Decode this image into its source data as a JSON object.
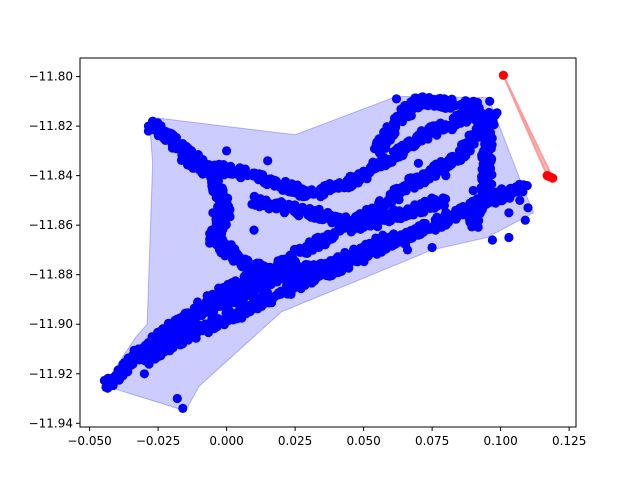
{
  "chart_data": {
    "type": "scatter",
    "title": "",
    "xlabel": "",
    "ylabel": "",
    "xlim": [
      -0.0535,
      0.1275
    ],
    "ylim": [
      -11.9415,
      -11.7925
    ],
    "xticks": [
      -0.05,
      -0.025,
      0.0,
      0.025,
      0.05,
      0.075,
      0.1,
      0.125
    ],
    "yticks": [
      -11.94,
      -11.92,
      -11.9,
      -11.88,
      -11.86,
      -11.84,
      -11.82,
      -11.8
    ],
    "xtick_labels": [
      "−0.050",
      "−0.025",
      "0.000",
      "0.025",
      "0.050",
      "0.075",
      "0.100",
      "0.125"
    ],
    "ytick_labels": [
      "−11.94",
      "−11.92",
      "−11.90",
      "−11.88",
      "−11.86",
      "−11.84",
      "−11.82",
      "−11.80"
    ],
    "grid": false,
    "colors": {
      "cluster_main": "#0000ff",
      "hull_fill": "#0000ff",
      "cluster_outlier": "#ff0000",
      "outlier_line": "#ff9999"
    },
    "series": [
      {
        "color": "#0000ff",
        "hull": [
          [
            -0.0455,
            -11.9245
          ],
          [
            -0.042,
            -11.92
          ],
          [
            -0.033,
            -11.905
          ],
          [
            -0.029,
            -11.9
          ],
          [
            -0.027,
            -11.835
          ],
          [
            -0.028,
            -11.82
          ],
          [
            -0.027,
            -11.8165
          ],
          [
            0.025,
            -11.8235
          ],
          [
            0.062,
            -11.808
          ],
          [
            0.0955,
            -11.8085
          ],
          [
            0.109,
            -11.847
          ],
          [
            0.112,
            -11.855
          ],
          [
            0.095,
            -11.865
          ],
          [
            0.075,
            -11.87
          ],
          [
            0.02,
            -11.895
          ],
          [
            -0.01,
            -11.925
          ],
          [
            -0.015,
            -11.935
          ]
        ],
        "spines": [
          {
            "points": [
              [
                -0.044,
                -11.925
              ],
              [
                -0.03,
                -11.91
              ],
              [
                -0.015,
                -11.898
              ],
              [
                0.0,
                -11.886
              ],
              [
                0.02,
                -11.875
              ],
              [
                0.045,
                -11.86
              ],
              [
                0.065,
                -11.845
              ],
              [
                0.085,
                -11.832
              ],
              [
                0.098,
                -11.815
              ]
            ],
            "width": 0.004
          },
          {
            "points": [
              [
                -0.03,
                -11.915
              ],
              [
                -0.015,
                -11.905
              ],
              [
                0.005,
                -11.895
              ],
              [
                0.03,
                -11.882
              ],
              [
                0.055,
                -11.87
              ],
              [
                0.075,
                -11.86
              ],
              [
                0.095,
                -11.85
              ],
              [
                0.108,
                -11.845
              ]
            ],
            "width": 0.004
          },
          {
            "points": [
              [
                -0.027,
                -11.82
              ],
              [
                -0.015,
                -11.83
              ],
              [
                -0.005,
                -11.84
              ],
              [
                0.0,
                -11.855
              ],
              [
                -0.005,
                -11.865
              ],
              [
                0.005,
                -11.875
              ],
              [
                0.02,
                -11.88
              ]
            ],
            "width": 0.004
          },
          {
            "points": [
              [
                -0.015,
                -11.835
              ],
              [
                0.01,
                -11.84
              ],
              [
                0.03,
                -11.848
              ],
              [
                0.05,
                -11.84
              ],
              [
                0.07,
                -11.825
              ],
              [
                0.09,
                -11.815
              ]
            ],
            "width": 0.004
          },
          {
            "points": [
              [
                0.055,
                -11.83
              ],
              [
                0.065,
                -11.815
              ],
              [
                0.07,
                -11.81
              ],
              [
                0.09,
                -11.812
              ],
              [
                0.095,
                -11.825
              ],
              [
                0.095,
                -11.845
              ],
              [
                0.09,
                -11.86
              ]
            ],
            "width": 0.004
          },
          {
            "points": [
              [
                -0.025,
                -11.905
              ],
              [
                -0.01,
                -11.895
              ],
              [
                0.005,
                -11.888
              ],
              [
                0.02,
                -11.88
              ],
              [
                0.04,
                -11.875
              ],
              [
                0.06,
                -11.865
              ]
            ],
            "width": 0.004
          },
          {
            "points": [
              [
                0.01,
                -11.85
              ],
              [
                0.03,
                -11.855
              ],
              [
                0.05,
                -11.86
              ],
              [
                0.065,
                -11.855
              ],
              [
                0.08,
                -11.85
              ]
            ],
            "width": 0.004
          }
        ],
        "scatter": [
          [
            -0.044,
            -11.9255
          ],
          [
            -0.03,
            -11.92
          ],
          [
            -0.016,
            -11.934
          ],
          [
            -0.018,
            -11.93
          ],
          [
            -0.027,
            -11.818
          ],
          [
            -0.0285,
            -11.82
          ],
          [
            0.075,
            -11.869
          ],
          [
            0.066,
            -11.87
          ],
          [
            0.103,
            -11.855
          ],
          [
            0.11,
            -11.853
          ],
          [
            0.097,
            -11.866
          ],
          [
            0.103,
            -11.865
          ],
          [
            0.107,
            -11.85
          ],
          [
            0.109,
            -11.858
          ],
          [
            0.096,
            -11.81
          ],
          [
            0.062,
            -11.809
          ],
          [
            0.045,
            -11.874
          ],
          [
            0.03,
            -11.882
          ],
          [
            0.0,
            -11.83
          ],
          [
            0.015,
            -11.834
          ],
          [
            -0.005,
            -11.855
          ],
          [
            0.01,
            -11.862
          ],
          [
            0.035,
            -11.865
          ],
          [
            0.055,
            -11.855
          ],
          [
            0.08,
            -11.84
          ],
          [
            0.085,
            -11.855
          ],
          [
            0.09,
            -11.846
          ],
          [
            0.07,
            -11.835
          ]
        ]
      },
      {
        "color": "#ff0000",
        "hull": [
          [
            0.101,
            -11.7995
          ],
          [
            0.117,
            -11.84
          ],
          [
            0.119,
            -11.841
          ]
        ],
        "points": [
          [
            0.101,
            -11.7995
          ],
          [
            0.117,
            -11.84
          ],
          [
            0.119,
            -11.841
          ],
          [
            0.118,
            -11.8405
          ]
        ]
      }
    ]
  }
}
